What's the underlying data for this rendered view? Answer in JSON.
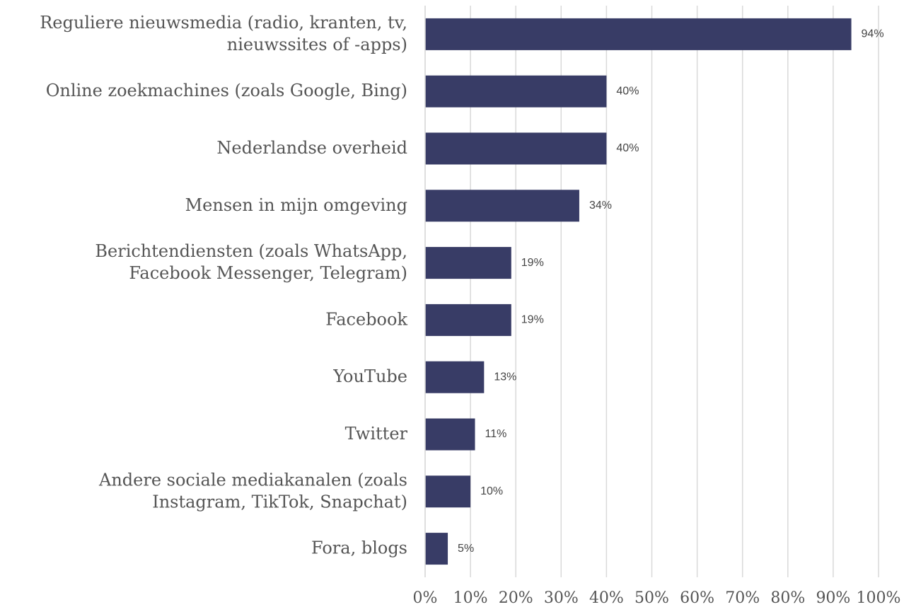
{
  "chart_data": {
    "type": "bar",
    "orientation": "horizontal",
    "categories": [
      "Reguliere nieuwsmedia (radio, kranten, tv,\nnieuwssites of -apps)",
      "Online zoekmachines (zoals Google, Bing)",
      "Nederlandse overheid",
      "Mensen in mijn omgeving",
      "Berichtendiensten (zoals WhatsApp,\nFacebook Messenger, Telegram)",
      "Facebook",
      "YouTube",
      "Twitter",
      "Andere sociale mediakanalen (zoals\nInstagram, TikTok, Snapchat)",
      "Fora, blogs"
    ],
    "values": [
      94,
      40,
      40,
      34,
      19,
      19,
      13,
      11,
      10,
      5
    ],
    "value_labels": [
      "94%",
      "40%",
      "40%",
      "34%",
      "19%",
      "19%",
      "13%",
      "11%",
      "10%",
      "5%"
    ],
    "color": "#383c66",
    "xlim": [
      0,
      100
    ],
    "xticks": [
      {
        "value": 0,
        "label": "0%"
      },
      {
        "value": 10,
        "label": "10%"
      },
      {
        "value": 20,
        "label": "20%"
      },
      {
        "value": 30,
        "label": "30%"
      },
      {
        "value": 40,
        "label": "40%"
      },
      {
        "value": 50,
        "label": "50%"
      },
      {
        "value": 60,
        "label": "60%"
      },
      {
        "value": 70,
        "label": "70%"
      },
      {
        "value": 80,
        "label": "80%"
      },
      {
        "value": 90,
        "label": "90%"
      },
      {
        "value": 100,
        "label": "100%"
      }
    ],
    "grid": true
  }
}
